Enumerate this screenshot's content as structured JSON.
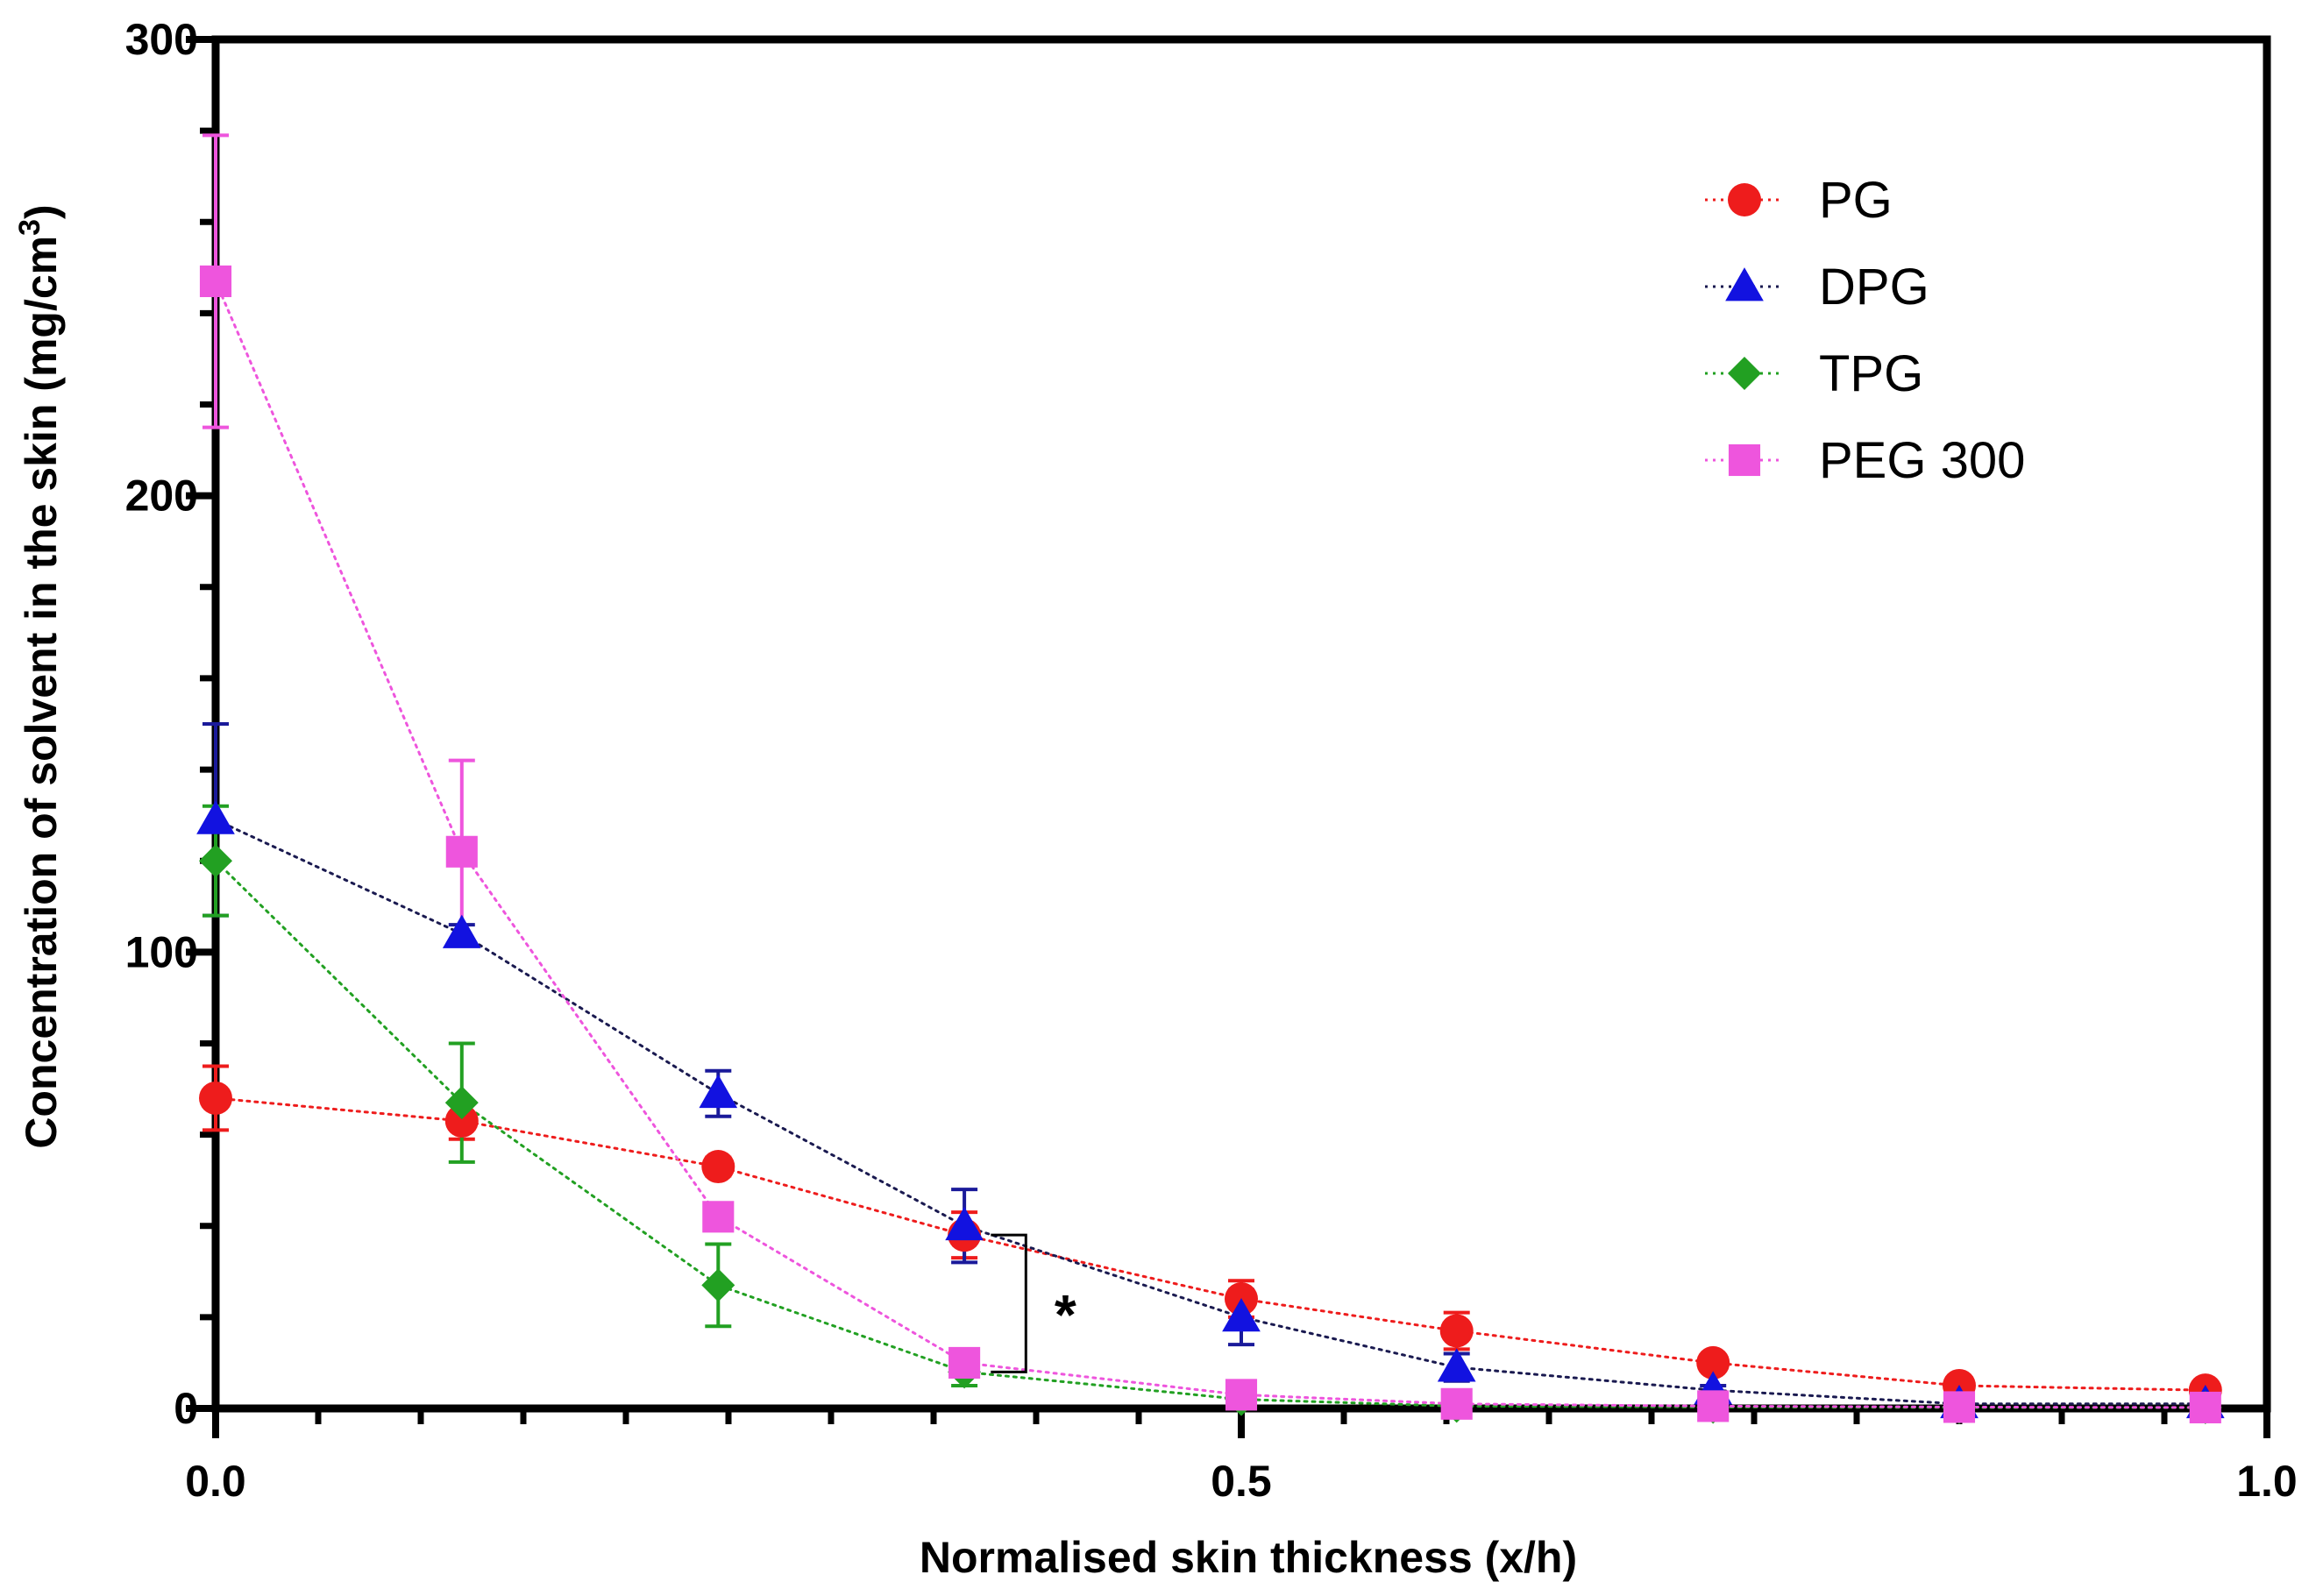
{
  "chart_data": {
    "type": "scatter",
    "title": "",
    "xlabel": "Normalised skin thickness (x/h)",
    "ylabel": {
      "main": "Concentration of solvent in the skin (mg/cm",
      "sup": "3",
      "close": ")"
    },
    "xlim": [
      0,
      1
    ],
    "ylim": [
      0,
      300
    ],
    "x_ticks": [
      0.0,
      0.5,
      1.0
    ],
    "x_tick_labels": [
      "0.0",
      "0.5",
      "1.0"
    ],
    "y_ticks": [
      0,
      100,
      200,
      300
    ],
    "y_tick_labels": [
      "0",
      "100",
      "200",
      "300"
    ],
    "x_minor_step": 0.05,
    "y_minor_step": 20,
    "grid": false,
    "legend_position": "top-right",
    "series": [
      {
        "name": "PG",
        "marker": "circle",
        "color": "#ee1c1c",
        "points": [
          {
            "x": 0.0,
            "y": 68,
            "err": 7
          },
          {
            "x": 0.12,
            "y": 63,
            "err": 4
          },
          {
            "x": 0.245,
            "y": 53,
            "err": 2
          },
          {
            "x": 0.365,
            "y": 38,
            "err": 5
          },
          {
            "x": 0.5,
            "y": 24,
            "err": 4
          },
          {
            "x": 0.605,
            "y": 17,
            "err": 4
          },
          {
            "x": 0.73,
            "y": 10,
            "err": 1
          },
          {
            "x": 0.85,
            "y": 5,
            "err": 1
          },
          {
            "x": 0.97,
            "y": 4,
            "err": 1
          }
        ]
      },
      {
        "name": "DPG",
        "marker": "triangle",
        "color": "#1212e0",
        "points": [
          {
            "x": 0.0,
            "y": 129,
            "err": 21
          },
          {
            "x": 0.12,
            "y": 104,
            "err": 2
          },
          {
            "x": 0.245,
            "y": 69,
            "err": 5
          },
          {
            "x": 0.365,
            "y": 40,
            "err": 8
          },
          {
            "x": 0.5,
            "y": 20,
            "err": 6
          },
          {
            "x": 0.605,
            "y": 9,
            "err": 3
          },
          {
            "x": 0.73,
            "y": 4,
            "err": 1
          },
          {
            "x": 0.85,
            "y": 1,
            "err": 0.5
          },
          {
            "x": 0.97,
            "y": 1,
            "err": 0.5
          }
        ]
      },
      {
        "name": "TPG",
        "marker": "diamond",
        "color": "#22a022",
        "points": [
          {
            "x": 0.0,
            "y": 120,
            "err": 12
          },
          {
            "x": 0.12,
            "y": 67,
            "err": 13
          },
          {
            "x": 0.245,
            "y": 27,
            "err": 9
          },
          {
            "x": 0.365,
            "y": 8,
            "err": 3
          },
          {
            "x": 0.5,
            "y": 2,
            "err": 1
          },
          {
            "x": 0.605,
            "y": 0.5,
            "err": 0.5
          },
          {
            "x": 0.73,
            "y": 0.3,
            "err": 0.3
          },
          {
            "x": 0.85,
            "y": 0.2,
            "err": 0.2
          },
          {
            "x": 0.97,
            "y": 0.2,
            "err": 0.2
          }
        ]
      },
      {
        "name": "PEG 300",
        "marker": "square",
        "color": "#ee55dd",
        "points": [
          {
            "x": 0.0,
            "y": 247,
            "err": 32
          },
          {
            "x": 0.12,
            "y": 122,
            "err": 20
          },
          {
            "x": 0.245,
            "y": 42,
            "err": 3
          },
          {
            "x": 0.365,
            "y": 10,
            "err": 3
          },
          {
            "x": 0.5,
            "y": 3,
            "err": 1
          },
          {
            "x": 0.605,
            "y": 1,
            "err": 0.5
          },
          {
            "x": 0.73,
            "y": 0.5,
            "err": 0.3
          },
          {
            "x": 0.85,
            "y": 0.3,
            "err": 0.2
          },
          {
            "x": 0.97,
            "y": 0.2,
            "err": 0.2
          }
        ]
      }
    ],
    "annotation": {
      "text": "*",
      "x": 0.395,
      "y_top": 38,
      "y_bottom": 8
    }
  }
}
